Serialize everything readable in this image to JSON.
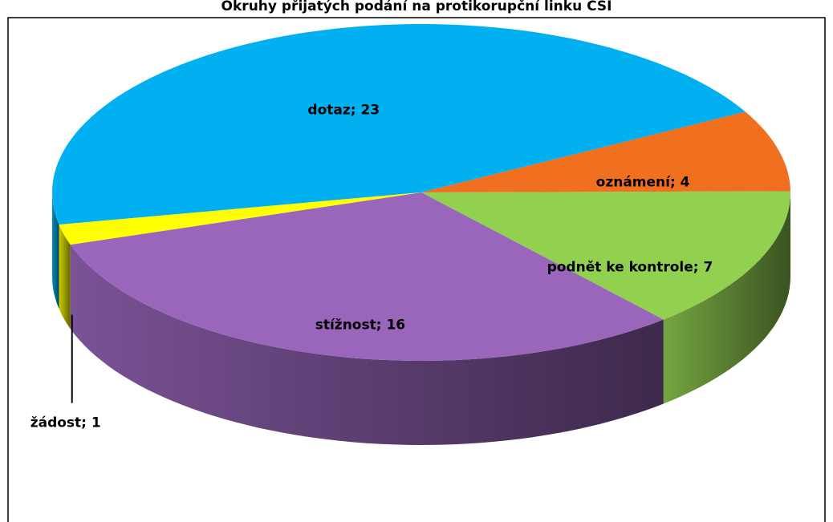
{
  "chart_data": {
    "type": "pie3d",
    "title": "Okruhy přijatých podání na protikorupční linku ČŠI",
    "categories": [
      "dotaz",
      "oznámení",
      "podnět ke kontrole",
      "stížnost",
      "žádost"
    ],
    "values": [
      23,
      4,
      7,
      16,
      1
    ],
    "value_labels": [
      "dotaz; 23",
      "oznámení; 4",
      "podnět ke kontrole; 7",
      "stížnost; 16",
      "žádost; 1"
    ],
    "colors": [
      "#00b0f0",
      "#f07020",
      "#92d050",
      "#9966bb",
      "#ffff00"
    ]
  }
}
